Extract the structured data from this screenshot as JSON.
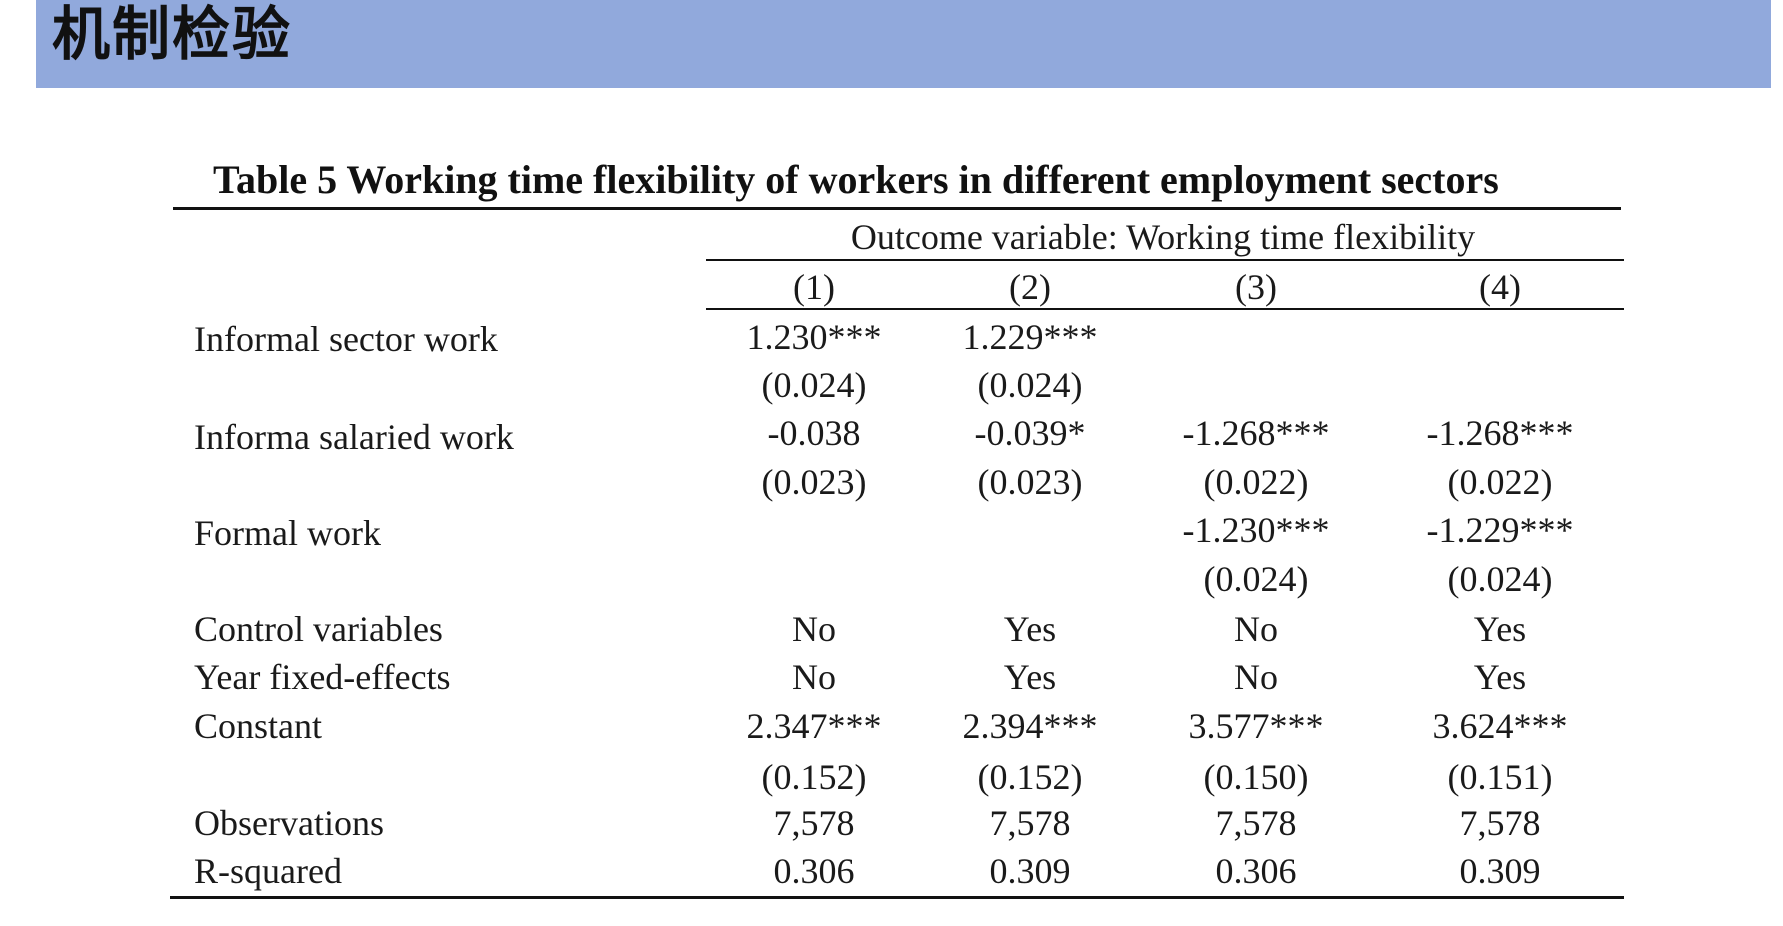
{
  "slide": {
    "title": "机制检验",
    "header_color": "#91a9dc"
  },
  "table": {
    "caption": "Table 5  Working time flexibility of workers in different employment sectors",
    "outcome_label": "Outcome variable: Working time flexibility",
    "columns": [
      "(1)",
      "(2)",
      "(3)",
      "(4)"
    ],
    "rows": [
      {
        "label": "Informal sector work",
        "cells": [
          "1.230***",
          "1.229***",
          "",
          ""
        ]
      },
      {
        "label": "",
        "cells": [
          "(0.024)",
          "(0.024)",
          "",
          ""
        ]
      },
      {
        "label": "Informa salaried work",
        "cells": [
          "-0.038",
          "-0.039*",
          "-1.268***",
          "-1.268***"
        ]
      },
      {
        "label": "",
        "cells": [
          "(0.023)",
          "(0.023)",
          "(0.022)",
          "(0.022)"
        ]
      },
      {
        "label": "Formal work",
        "cells": [
          "",
          "",
          "-1.230***",
          "-1.229***"
        ]
      },
      {
        "label": "",
        "cells": [
          "",
          "",
          "(0.024)",
          "(0.024)"
        ]
      },
      {
        "label": "Control variables",
        "cells": [
          "No",
          "Yes",
          "No",
          "Yes"
        ]
      },
      {
        "label": "Year fixed-effects",
        "cells": [
          "No",
          "Yes",
          "No",
          "Yes"
        ]
      },
      {
        "label": "Constant",
        "cells": [
          "2.347***",
          "2.394***",
          "3.577***",
          "3.624***"
        ]
      },
      {
        "label": "",
        "cells": [
          "(0.152)",
          "(0.152)",
          "(0.150)",
          "(0.151)"
        ]
      },
      {
        "label": "Observations",
        "cells": [
          "7,578",
          "7,578",
          "7,578",
          "7,578"
        ]
      },
      {
        "label": "R-squared",
        "cells": [
          "0.306",
          "0.309",
          "0.306",
          "0.309"
        ]
      }
    ]
  }
}
